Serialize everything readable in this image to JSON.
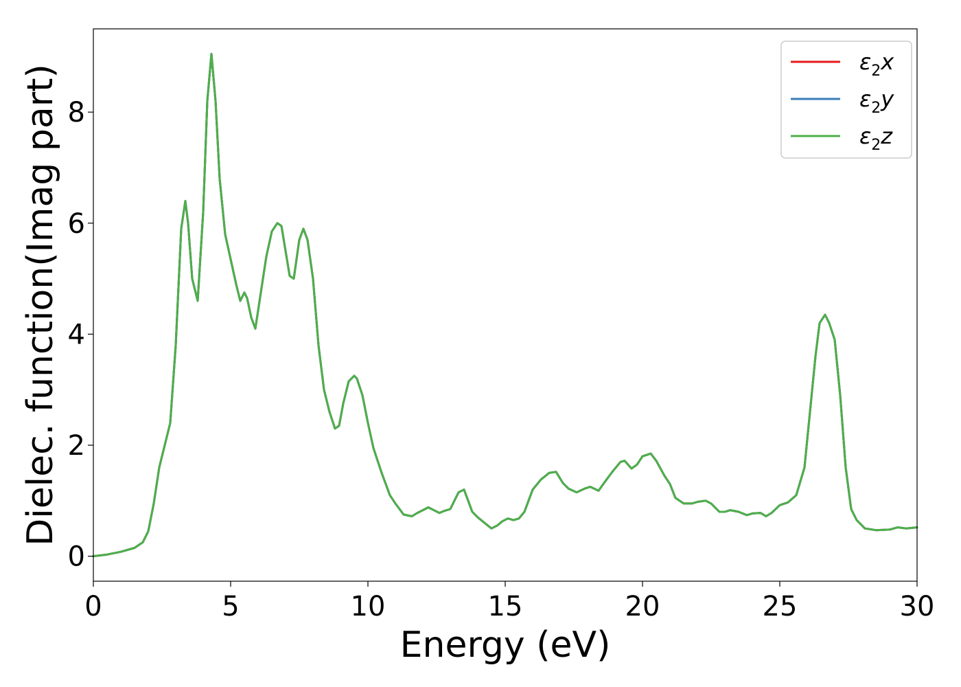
{
  "chart_data": {
    "type": "line",
    "xlabel": "Energy (eV)",
    "ylabel": "Dielec. function(Imag part)",
    "xlim": [
      0,
      30
    ],
    "ylim": [
      -0.45,
      9.5
    ],
    "xticks": [
      0,
      5,
      10,
      15,
      20,
      25,
      30
    ],
    "yticks": [
      0,
      2,
      4,
      6,
      8
    ],
    "grid": false,
    "legend_position": "top-right",
    "colors": {
      "e2x": "#e41a1c",
      "e2y": "#377eb8",
      "e2z": "#4daf4a",
      "axes": "#000000",
      "legend_border": "#cccccc"
    },
    "legend": [
      {
        "key": "e2x",
        "base": "ε",
        "sub": "2",
        "suffix": "x"
      },
      {
        "key": "e2y",
        "base": "ε",
        "sub": "2",
        "suffix": "y"
      },
      {
        "key": "e2z",
        "base": "ε",
        "sub": "2",
        "suffix": "z"
      }
    ],
    "x": [
      0,
      0.5,
      1.0,
      1.5,
      1.8,
      2.0,
      2.2,
      2.4,
      2.6,
      2.8,
      3.0,
      3.2,
      3.35,
      3.45,
      3.6,
      3.8,
      4.0,
      4.15,
      4.3,
      4.45,
      4.6,
      4.8,
      5.0,
      5.2,
      5.35,
      5.5,
      5.6,
      5.75,
      5.9,
      6.1,
      6.3,
      6.5,
      6.7,
      6.85,
      7.0,
      7.15,
      7.3,
      7.5,
      7.65,
      7.8,
      8.0,
      8.2,
      8.4,
      8.6,
      8.8,
      8.95,
      9.1,
      9.3,
      9.5,
      9.6,
      9.8,
      10.0,
      10.2,
      10.5,
      10.8,
      11.0,
      11.3,
      11.6,
      11.8,
      12.0,
      12.2,
      12.4,
      12.6,
      12.8,
      13.0,
      13.3,
      13.5,
      13.65,
      13.8,
      14.0,
      14.3,
      14.5,
      14.7,
      14.9,
      15.1,
      15.3,
      15.5,
      15.7,
      16.0,
      16.3,
      16.6,
      16.85,
      17.1,
      17.3,
      17.6,
      17.9,
      18.1,
      18.4,
      18.6,
      18.9,
      19.2,
      19.35,
      19.6,
      19.8,
      20.0,
      20.3,
      20.5,
      20.8,
      21.0,
      21.2,
      21.5,
      21.8,
      22.0,
      22.3,
      22.5,
      22.8,
      23.0,
      23.2,
      23.5,
      23.8,
      24.0,
      24.3,
      24.5,
      24.7,
      25.0,
      25.3,
      25.6,
      25.9,
      26.1,
      26.3,
      26.45,
      26.65,
      26.8,
      27.0,
      27.2,
      27.4,
      27.6,
      27.8,
      28.1,
      28.5,
      29.0,
      29.3,
      29.6,
      30.0
    ],
    "series": [
      {
        "name": "ε2x",
        "color_key": "e2x",
        "values": [
          0.0,
          0.03,
          0.08,
          0.15,
          0.25,
          0.45,
          0.95,
          1.6,
          2.0,
          2.4,
          3.8,
          5.9,
          6.4,
          6.0,
          5.0,
          4.6,
          6.2,
          8.2,
          9.05,
          8.2,
          6.8,
          5.8,
          5.35,
          4.9,
          4.6,
          4.75,
          4.65,
          4.3,
          4.1,
          4.75,
          5.4,
          5.85,
          6.0,
          5.95,
          5.5,
          5.05,
          5.0,
          5.7,
          5.9,
          5.7,
          5.0,
          3.8,
          3.0,
          2.6,
          2.3,
          2.35,
          2.75,
          3.15,
          3.25,
          3.2,
          2.9,
          2.4,
          1.95,
          1.5,
          1.1,
          0.95,
          0.75,
          0.72,
          0.78,
          0.83,
          0.88,
          0.83,
          0.78,
          0.82,
          0.85,
          1.15,
          1.2,
          1.0,
          0.8,
          0.7,
          0.58,
          0.5,
          0.55,
          0.63,
          0.68,
          0.65,
          0.68,
          0.8,
          1.2,
          1.38,
          1.5,
          1.52,
          1.32,
          1.22,
          1.15,
          1.22,
          1.25,
          1.18,
          1.32,
          1.52,
          1.7,
          1.72,
          1.58,
          1.65,
          1.8,
          1.85,
          1.72,
          1.45,
          1.3,
          1.05,
          0.95,
          0.95,
          0.98,
          1.0,
          0.95,
          0.8,
          0.8,
          0.83,
          0.8,
          0.74,
          0.77,
          0.78,
          0.72,
          0.78,
          0.92,
          0.97,
          1.1,
          1.6,
          2.6,
          3.6,
          4.2,
          4.35,
          4.2,
          3.9,
          2.9,
          1.6,
          0.85,
          0.65,
          0.5,
          0.47,
          0.48,
          0.52,
          0.5,
          0.52
        ]
      },
      {
        "name": "ε2y",
        "color_key": "e2y",
        "values": [
          0.0,
          0.03,
          0.08,
          0.15,
          0.25,
          0.45,
          0.95,
          1.6,
          2.0,
          2.4,
          3.8,
          5.9,
          6.4,
          6.0,
          5.0,
          4.6,
          6.2,
          8.2,
          9.05,
          8.2,
          6.8,
          5.8,
          5.35,
          4.9,
          4.6,
          4.75,
          4.65,
          4.3,
          4.1,
          4.75,
          5.4,
          5.85,
          6.0,
          5.95,
          5.5,
          5.05,
          5.0,
          5.7,
          5.9,
          5.7,
          5.0,
          3.8,
          3.0,
          2.6,
          2.3,
          2.35,
          2.75,
          3.15,
          3.25,
          3.2,
          2.9,
          2.4,
          1.95,
          1.5,
          1.1,
          0.95,
          0.75,
          0.72,
          0.78,
          0.83,
          0.88,
          0.83,
          0.78,
          0.82,
          0.85,
          1.15,
          1.2,
          1.0,
          0.8,
          0.7,
          0.58,
          0.5,
          0.55,
          0.63,
          0.68,
          0.65,
          0.68,
          0.8,
          1.2,
          1.38,
          1.5,
          1.52,
          1.32,
          1.22,
          1.15,
          1.22,
          1.25,
          1.18,
          1.32,
          1.52,
          1.7,
          1.72,
          1.58,
          1.65,
          1.8,
          1.85,
          1.72,
          1.45,
          1.3,
          1.05,
          0.95,
          0.95,
          0.98,
          1.0,
          0.95,
          0.8,
          0.8,
          0.83,
          0.8,
          0.74,
          0.77,
          0.78,
          0.72,
          0.78,
          0.92,
          0.97,
          1.1,
          1.6,
          2.6,
          3.6,
          4.2,
          4.35,
          4.2,
          3.9,
          2.9,
          1.6,
          0.85,
          0.65,
          0.5,
          0.47,
          0.48,
          0.52,
          0.5,
          0.52
        ]
      },
      {
        "name": "ε2z",
        "color_key": "e2z",
        "values": [
          0.0,
          0.03,
          0.08,
          0.15,
          0.25,
          0.45,
          0.95,
          1.6,
          2.0,
          2.4,
          3.8,
          5.9,
          6.4,
          6.0,
          5.0,
          4.6,
          6.2,
          8.2,
          9.05,
          8.2,
          6.8,
          5.8,
          5.35,
          4.9,
          4.6,
          4.75,
          4.65,
          4.3,
          4.1,
          4.75,
          5.4,
          5.85,
          6.0,
          5.95,
          5.5,
          5.05,
          5.0,
          5.7,
          5.9,
          5.7,
          5.0,
          3.8,
          3.0,
          2.6,
          2.3,
          2.35,
          2.75,
          3.15,
          3.25,
          3.2,
          2.9,
          2.4,
          1.95,
          1.5,
          1.1,
          0.95,
          0.75,
          0.72,
          0.78,
          0.83,
          0.88,
          0.83,
          0.78,
          0.82,
          0.85,
          1.15,
          1.2,
          1.0,
          0.8,
          0.7,
          0.58,
          0.5,
          0.55,
          0.63,
          0.68,
          0.65,
          0.68,
          0.8,
          1.2,
          1.38,
          1.5,
          1.52,
          1.32,
          1.22,
          1.15,
          1.22,
          1.25,
          1.18,
          1.32,
          1.52,
          1.7,
          1.72,
          1.58,
          1.65,
          1.8,
          1.85,
          1.72,
          1.45,
          1.3,
          1.05,
          0.95,
          0.95,
          0.98,
          1.0,
          0.95,
          0.8,
          0.8,
          0.83,
          0.8,
          0.74,
          0.77,
          0.78,
          0.72,
          0.78,
          0.92,
          0.97,
          1.1,
          1.6,
          2.6,
          3.6,
          4.2,
          4.35,
          4.2,
          3.9,
          2.9,
          1.6,
          0.85,
          0.65,
          0.5,
          0.47,
          0.48,
          0.52,
          0.5,
          0.52
        ]
      }
    ]
  }
}
